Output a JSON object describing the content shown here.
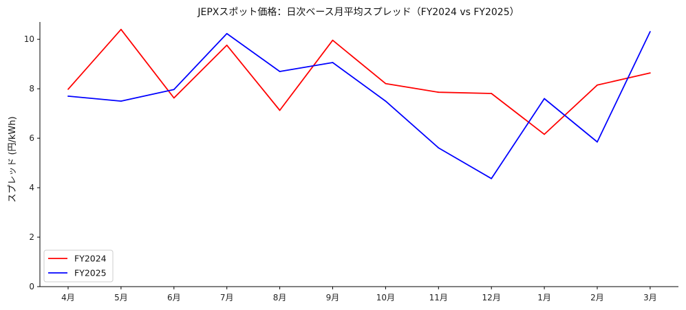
{
  "chart_data": {
    "type": "line",
    "title": "JEPXスポット価格：日次ベース月平均スプレッド（FY2024 vs FY2025）",
    "xlabel": "",
    "ylabel": "スプレッド (円/kWh)",
    "categories": [
      "4月",
      "5月",
      "6月",
      "7月",
      "8月",
      "9月",
      "10月",
      "11月",
      "12月",
      "1月",
      "2月",
      "3月"
    ],
    "ylim": [
      0,
      10.7
    ],
    "yticks": [
      "0",
      "2",
      "4",
      "6",
      "8",
      "10"
    ],
    "grid": false,
    "legend_position": "lower-left",
    "series": [
      {
        "name": "FY2024",
        "color": "#ff0000",
        "values": [
          7.98,
          10.4,
          7.63,
          9.76,
          7.13,
          9.96,
          8.21,
          7.86,
          7.81,
          6.16,
          8.15,
          8.64
        ]
      },
      {
        "name": "FY2025",
        "color": "#0000ff",
        "values": [
          7.7,
          7.5,
          7.97,
          10.23,
          8.7,
          9.06,
          7.5,
          5.61,
          4.37,
          7.6,
          5.85,
          10.31
        ]
      }
    ]
  }
}
